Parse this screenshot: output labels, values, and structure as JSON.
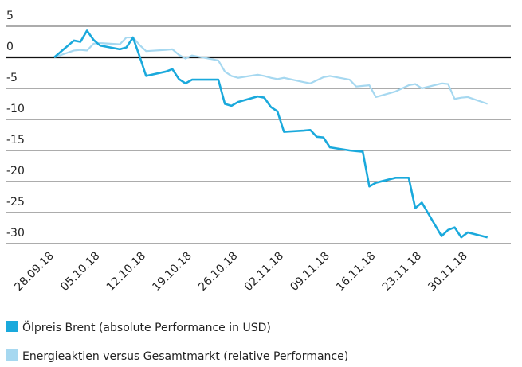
{
  "chart_data": {
    "type": "line",
    "x": [
      "28.09.18",
      "01.10.18",
      "02.10.18",
      "03.10.18",
      "04.10.18",
      "05.10.18",
      "08.10.18",
      "09.10.18",
      "10.10.18",
      "11.10.18",
      "12.10.18",
      "15.10.18",
      "16.10.18",
      "17.10.18",
      "18.10.18",
      "19.10.18",
      "22.10.18",
      "23.10.18",
      "24.10.18",
      "25.10.18",
      "26.10.18",
      "29.10.18",
      "30.10.18",
      "31.10.18",
      "01.11.18",
      "02.11.18",
      "05.11.18",
      "06.11.18",
      "07.11.18",
      "08.11.18",
      "09.11.18",
      "12.11.18",
      "13.11.18",
      "14.11.18",
      "15.11.18",
      "16.11.18",
      "19.11.18",
      "20.11.18",
      "21.11.18",
      "22.11.18",
      "23.11.18",
      "26.11.18",
      "27.11.18",
      "28.11.18",
      "29.11.18",
      "30.11.18",
      "03.12.18"
    ],
    "series": [
      {
        "name": "Ölpreis Brent (absolute Performance in USD)",
        "color": "#1aa9dc",
        "values": [
          0,
          2.7,
          2.5,
          4.3,
          2.8,
          1.9,
          1.3,
          1.6,
          3.2,
          0.2,
          -3.0,
          -2.3,
          -1.9,
          -3.5,
          -4.2,
          -3.6,
          -3.6,
          -3.6,
          -7.5,
          -7.8,
          -7.2,
          -6.3,
          -6.5,
          -8.0,
          -8.7,
          -12.0,
          -11.8,
          -11.7,
          -12.8,
          -12.9,
          -14.5,
          -15.0,
          -15.1,
          -15.2,
          -20.8,
          -20.2,
          -19.4,
          -19.4,
          -19.4,
          -24.3,
          -23.4,
          -28.8,
          -27.8,
          -27.4,
          -29.0,
          -28.2,
          -29.0
        ]
      },
      {
        "name": "Energieaktien versus Gesamtmarkt (relative Performance)",
        "color": "#a6d8f0",
        "values": [
          0,
          1.1,
          1.2,
          1.1,
          2.2,
          2.3,
          2.1,
          3.2,
          3.2,
          2.0,
          1.0,
          1.2,
          1.3,
          0.4,
          -0.2,
          0.3,
          -0.3,
          -0.5,
          -2.3,
          -3.0,
          -3.3,
          -2.8,
          -3.0,
          -3.3,
          -3.5,
          -3.3,
          -4.0,
          -4.2,
          -3.7,
          -3.2,
          -3.0,
          -3.6,
          -4.7,
          -4.6,
          -4.5,
          -6.4,
          -5.5,
          -5.0,
          -4.5,
          -4.3,
          -5.0,
          -4.2,
          -4.3,
          -6.7,
          -6.5,
          -6.4,
          -7.5
        ]
      }
    ],
    "xticks": [
      "28.09.18",
      "05.10.18",
      "12.10.18",
      "19.10.18",
      "26.10.18",
      "02.11.18",
      "09.11.18",
      "16.11.18",
      "23.11.18",
      "30.11.18"
    ],
    "ylim": [
      -32,
      7
    ],
    "yticks": [
      5,
      0,
      -5,
      -10,
      -15,
      -20,
      -25,
      -30
    ],
    "grid": true
  }
}
